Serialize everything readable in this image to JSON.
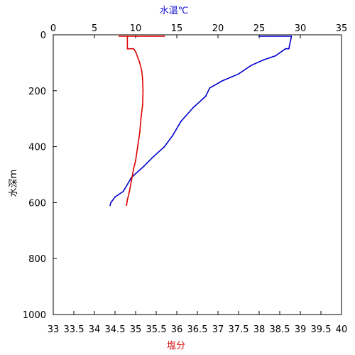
{
  "chart_data": {
    "type": "line",
    "title": "",
    "grid": false,
    "top_axis": {
      "label": "水温℃",
      "label_color": "#1010d0",
      "range": [
        0,
        35
      ],
      "ticks": [
        "0",
        "5",
        "10",
        "15",
        "20",
        "25",
        "30",
        "35"
      ]
    },
    "bottom_axis": {
      "label": "塩分",
      "label_color": "#d01010",
      "range": [
        33,
        40
      ],
      "ticks": [
        "33",
        "33.5",
        "34",
        "34.5",
        "35",
        "35.5",
        "36",
        "36.5",
        "37",
        "37.5",
        "38",
        "38.5",
        "39",
        "39.5",
        "40"
      ]
    },
    "left_axis": {
      "label": "水深m",
      "label_color": "#000000",
      "range": [
        0,
        1000
      ],
      "inverted": true,
      "ticks": [
        "0",
        "200",
        "400",
        "600",
        "800",
        "1000"
      ]
    },
    "series": [
      {
        "quantity": "water-temperature",
        "axis": "top",
        "color": "#0000cc",
        "points": [
          {
            "x": 25.0,
            "depth": 5
          },
          {
            "x": 28.9,
            "depth": 5
          },
          {
            "x": 28.9,
            "depth": 10
          },
          {
            "x": 28.6,
            "depth": 50
          },
          {
            "x": 28.2,
            "depth": 50
          },
          {
            "x": 27.0,
            "depth": 75
          },
          {
            "x": 25.5,
            "depth": 90
          },
          {
            "x": 24.0,
            "depth": 110
          },
          {
            "x": 22.5,
            "depth": 140
          },
          {
            "x": 20.5,
            "depth": 165
          },
          {
            "x": 19.0,
            "depth": 190
          },
          {
            "x": 18.5,
            "depth": 220
          },
          {
            "x": 17.0,
            "depth": 260
          },
          {
            "x": 15.5,
            "depth": 310
          },
          {
            "x": 14.5,
            "depth": 360
          },
          {
            "x": 13.5,
            "depth": 400
          },
          {
            "x": 12.0,
            "depth": 440
          },
          {
            "x": 11.0,
            "depth": 470
          },
          {
            "x": 9.5,
            "depth": 510
          },
          {
            "x": 8.5,
            "depth": 560
          },
          {
            "x": 7.5,
            "depth": 580
          },
          {
            "x": 7.0,
            "depth": 600
          },
          {
            "x": 6.9,
            "depth": 610
          }
        ]
      },
      {
        "quantity": "salinity",
        "axis": "bottom",
        "color": "#dd0000",
        "points": [
          {
            "x": 35.7,
            "depth": 5
          },
          {
            "x": 34.6,
            "depth": 5
          },
          {
            "x": 34.8,
            "depth": 5
          },
          {
            "x": 34.8,
            "depth": 50
          },
          {
            "x": 34.95,
            "depth": 50
          },
          {
            "x": 35.0,
            "depth": 60
          },
          {
            "x": 35.05,
            "depth": 80
          },
          {
            "x": 35.1,
            "depth": 100
          },
          {
            "x": 35.15,
            "depth": 130
          },
          {
            "x": 35.17,
            "depth": 160
          },
          {
            "x": 35.18,
            "depth": 200
          },
          {
            "x": 35.17,
            "depth": 250
          },
          {
            "x": 35.13,
            "depth": 300
          },
          {
            "x": 35.1,
            "depth": 350
          },
          {
            "x": 35.05,
            "depth": 400
          },
          {
            "x": 35.0,
            "depth": 450
          },
          {
            "x": 34.95,
            "depth": 480
          },
          {
            "x": 34.9,
            "depth": 520
          },
          {
            "x": 34.85,
            "depth": 560
          },
          {
            "x": 34.8,
            "depth": 590
          },
          {
            "x": 34.78,
            "depth": 610
          }
        ]
      }
    ]
  }
}
